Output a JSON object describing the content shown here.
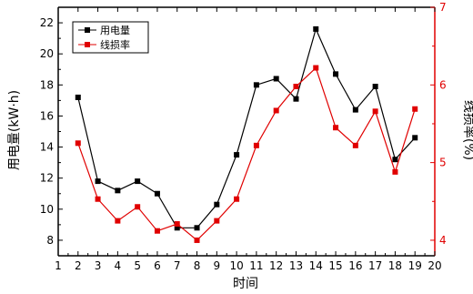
{
  "chart_data": {
    "type": "line",
    "xlabel": "时间",
    "ylabel_left": "用电量(kW·h)",
    "ylabel_right": "线损率(%)",
    "xlim": [
      1,
      20
    ],
    "ylim_left": [
      7,
      23
    ],
    "ylim_right": [
      3.8,
      7
    ],
    "x_ticks": [
      1,
      2,
      3,
      4,
      5,
      6,
      7,
      8,
      9,
      10,
      11,
      12,
      13,
      14,
      15,
      16,
      17,
      18,
      19,
      20
    ],
    "y_left_ticks": [
      8,
      10,
      12,
      14,
      16,
      18,
      20,
      22
    ],
    "y_right_ticks": [
      4,
      5,
      6,
      7
    ],
    "legend_position": "top-left",
    "colors": {
      "left_axis": "#000000",
      "right_axis": "#e00000"
    },
    "x": [
      2,
      3,
      4,
      5,
      6,
      7,
      8,
      9,
      10,
      11,
      12,
      13,
      14,
      15,
      16,
      17,
      18,
      19
    ],
    "series": [
      {
        "name": "用电量",
        "axis": "left",
        "color": "#000000",
        "values": [
          17.2,
          11.8,
          11.2,
          11.8,
          11.0,
          8.8,
          8.8,
          10.3,
          13.5,
          18.0,
          18.4,
          17.1,
          21.6,
          18.7,
          16.4,
          17.9,
          13.2,
          14.6
        ]
      },
      {
        "name": "线损率",
        "axis": "right",
        "color": "#e00000",
        "values": [
          5.25,
          4.53,
          4.25,
          4.43,
          4.12,
          4.21,
          4.0,
          4.25,
          4.53,
          5.22,
          5.67,
          5.98,
          6.22,
          5.45,
          5.22,
          5.66,
          4.88,
          5.69
        ]
      }
    ]
  }
}
